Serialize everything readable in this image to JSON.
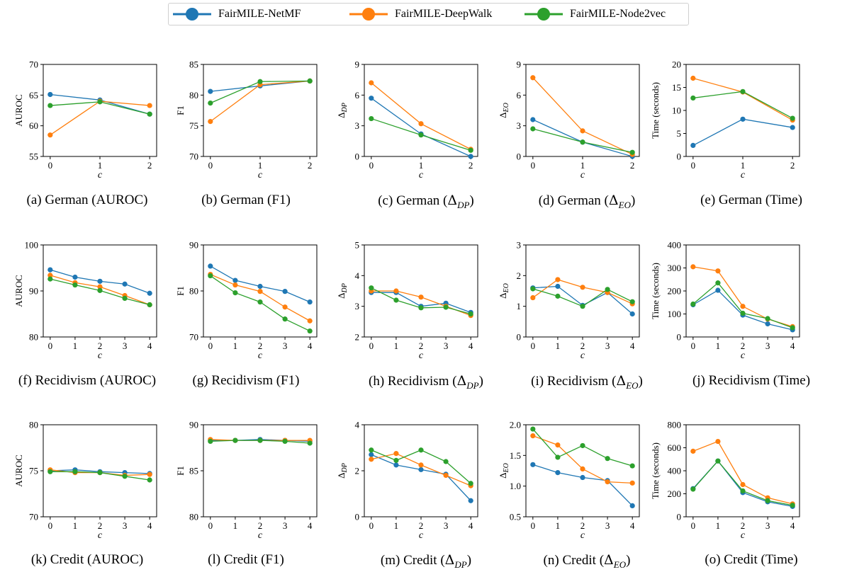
{
  "legend": [
    {
      "name": "FairMILE-NetMF",
      "color": "#1f77b4"
    },
    {
      "name": "FairMILE-DeepWalk",
      "color": "#ff7f0e"
    },
    {
      "name": "FairMILE-Node2vec",
      "color": "#2ca02c"
    }
  ],
  "captions": [
    {
      "prefix": "(a) German (AUROC)"
    },
    {
      "prefix": "(b) German (F1)"
    },
    {
      "prefix": "(c) German (",
      "sym": "Δ",
      "sub": "DP",
      "suffix": ")"
    },
    {
      "prefix": "(d) German (",
      "sym": "Δ",
      "sub": "EO",
      "suffix": ")"
    },
    {
      "prefix": "(e) German (Time)"
    },
    {
      "prefix": "(f) Recidivism (AUROC)"
    },
    {
      "prefix": "(g) Recidivism (F1)"
    },
    {
      "prefix": "(h) Recidivism (",
      "sym": "Δ",
      "sub": "DP",
      "suffix": ")"
    },
    {
      "prefix": "(i) Recidivism (",
      "sym": "Δ",
      "sub": "EO",
      "suffix": ")"
    },
    {
      "prefix": "(j) Recidivism (Time)"
    },
    {
      "prefix": "(k) Credit (AUROC)"
    },
    {
      "prefix": "(l) Credit (F1)"
    },
    {
      "prefix": "(m) Credit (",
      "sym": "Δ",
      "sub": "DP",
      "suffix": ")"
    },
    {
      "prefix": "(n) Credit (",
      "sym": "Δ",
      "sub": "EO",
      "suffix": ")"
    },
    {
      "prefix": "(o) Credit (Time)"
    }
  ],
  "chart_data": [
    {
      "type": "line",
      "xlabel": "c",
      "ylabel": "AUROC",
      "x": [
        0,
        1,
        2
      ],
      "ylim": [
        55,
        70
      ],
      "yticks": [
        "55",
        "60",
        "65",
        "70"
      ],
      "series": [
        {
          "name": "FairMILE-NetMF",
          "values": [
            65.1,
            64.2,
            61.9
          ]
        },
        {
          "name": "FairMILE-DeepWalk",
          "values": [
            58.5,
            64.0,
            63.3
          ]
        },
        {
          "name": "FairMILE-Node2vec",
          "values": [
            63.3,
            63.9,
            61.9
          ]
        }
      ]
    },
    {
      "type": "line",
      "xlabel": "c",
      "ylabel": "F1",
      "x": [
        0,
        1,
        2
      ],
      "ylim": [
        70,
        85
      ],
      "yticks": [
        "70",
        "75",
        "80",
        "85"
      ],
      "series": [
        {
          "name": "FairMILE-NetMF",
          "values": [
            80.6,
            81.5,
            82.3
          ]
        },
        {
          "name": "FairMILE-DeepWalk",
          "values": [
            75.7,
            81.7,
            82.3
          ]
        },
        {
          "name": "FairMILE-Node2vec",
          "values": [
            78.7,
            82.2,
            82.3
          ]
        }
      ]
    },
    {
      "type": "line",
      "xlabel": "c",
      "ylabel": "Δ_DP",
      "x": [
        0,
        1,
        2
      ],
      "ylim": [
        0,
        9
      ],
      "yticks": [
        "0",
        "3",
        "6",
        "9"
      ],
      "series": [
        {
          "name": "FairMILE-NetMF",
          "values": [
            5.7,
            2.2,
            0.0
          ]
        },
        {
          "name": "FairMILE-DeepWalk",
          "values": [
            7.2,
            3.2,
            0.7
          ]
        },
        {
          "name": "FairMILE-Node2vec",
          "values": [
            3.7,
            2.1,
            0.6
          ]
        }
      ]
    },
    {
      "type": "line",
      "xlabel": "c",
      "ylabel": "Δ_EO",
      "x": [
        0,
        1,
        2
      ],
      "ylim": [
        0,
        9
      ],
      "yticks": [
        "0",
        "3",
        "6",
        "9"
      ],
      "series": [
        {
          "name": "FairMILE-NetMF",
          "values": [
            3.6,
            1.4,
            0.0
          ]
        },
        {
          "name": "FairMILE-DeepWalk",
          "values": [
            7.7,
            2.5,
            0.2
          ]
        },
        {
          "name": "FairMILE-Node2vec",
          "values": [
            2.7,
            1.4,
            0.4
          ]
        }
      ]
    },
    {
      "type": "line",
      "xlabel": "c",
      "ylabel": "Time (seconds)",
      "x": [
        0,
        1,
        2
      ],
      "ylim": [
        0,
        20
      ],
      "yticks": [
        "0",
        "5",
        "10",
        "15",
        "20"
      ],
      "series": [
        {
          "name": "FairMILE-NetMF",
          "values": [
            2.4,
            8.1,
            6.3
          ]
        },
        {
          "name": "FairMILE-DeepWalk",
          "values": [
            17.0,
            14.0,
            7.9
          ]
        },
        {
          "name": "FairMILE-Node2vec",
          "values": [
            12.7,
            14.1,
            8.3
          ]
        }
      ]
    },
    {
      "type": "line",
      "xlabel": "c",
      "ylabel": "AUROC",
      "x": [
        0,
        1,
        2,
        3,
        4
      ],
      "ylim": [
        80,
        100
      ],
      "yticks": [
        "80",
        "90",
        "100"
      ],
      "series": [
        {
          "name": "FairMILE-NetMF",
          "values": [
            94.6,
            93.0,
            92.1,
            91.5,
            89.5
          ]
        },
        {
          "name": "FairMILE-DeepWalk",
          "values": [
            93.4,
            91.8,
            90.9,
            89.0,
            87.0
          ]
        },
        {
          "name": "FairMILE-Node2vec",
          "values": [
            92.6,
            91.3,
            90.1,
            88.4,
            87.0
          ]
        }
      ]
    },
    {
      "type": "line",
      "xlabel": "c",
      "ylabel": "F1",
      "x": [
        0,
        1,
        2,
        3,
        4
      ],
      "ylim": [
        70,
        90
      ],
      "yticks": [
        "70",
        "80",
        "90"
      ],
      "series": [
        {
          "name": "FairMILE-NetMF",
          "values": [
            85.4,
            82.3,
            81.0,
            79.9,
            77.6
          ]
        },
        {
          "name": "FairMILE-DeepWalk",
          "values": [
            83.6,
            81.3,
            79.9,
            76.5,
            73.5
          ]
        },
        {
          "name": "FairMILE-Node2vec",
          "values": [
            83.3,
            79.6,
            77.6,
            73.9,
            71.3
          ]
        }
      ]
    },
    {
      "type": "line",
      "xlabel": "c",
      "ylabel": "Δ_DP",
      "x": [
        0,
        1,
        2,
        3,
        4
      ],
      "ylim": [
        2,
        5
      ],
      "yticks": [
        "2",
        "3",
        "4",
        "5"
      ],
      "series": [
        {
          "name": "FairMILE-NetMF",
          "values": [
            3.45,
            3.45,
            3.0,
            3.1,
            2.8
          ]
        },
        {
          "name": "FairMILE-DeepWalk",
          "values": [
            3.5,
            3.5,
            3.3,
            3.0,
            2.7
          ]
        },
        {
          "name": "FairMILE-Node2vec",
          "values": [
            3.6,
            3.2,
            2.95,
            2.97,
            2.75
          ]
        }
      ]
    },
    {
      "type": "line",
      "xlabel": "c",
      "ylabel": "Δ_EO",
      "x": [
        0,
        1,
        2,
        3,
        4
      ],
      "ylim": [
        0,
        3
      ],
      "yticks": [
        "0",
        "1",
        "2",
        "3"
      ],
      "series": [
        {
          "name": "FairMILE-NetMF",
          "values": [
            1.6,
            1.65,
            1.03,
            1.45,
            0.75
          ]
        },
        {
          "name": "FairMILE-DeepWalk",
          "values": [
            1.28,
            1.87,
            1.62,
            1.45,
            1.08
          ]
        },
        {
          "name": "FairMILE-Node2vec",
          "values": [
            1.57,
            1.33,
            1.0,
            1.55,
            1.15
          ]
        }
      ]
    },
    {
      "type": "line",
      "xlabel": "c",
      "ylabel": "Time (seconds)",
      "x": [
        0,
        1,
        2,
        3,
        4
      ],
      "ylim": [
        0,
        400
      ],
      "yticks": [
        "0",
        "100",
        "200",
        "300",
        "400"
      ],
      "series": [
        {
          "name": "FairMILE-NetMF",
          "values": [
            140,
            203,
            95,
            57,
            31
          ]
        },
        {
          "name": "FairMILE-DeepWalk",
          "values": [
            305,
            287,
            133,
            78,
            45
          ]
        },
        {
          "name": "FairMILE-Node2vec",
          "values": [
            143,
            235,
            103,
            80,
            40
          ]
        }
      ]
    },
    {
      "type": "line",
      "xlabel": "c",
      "ylabel": "AUROC",
      "x": [
        0,
        1,
        2,
        3,
        4
      ],
      "ylim": [
        70,
        80
      ],
      "yticks": [
        "70",
        "75",
        "80"
      ],
      "series": [
        {
          "name": "FairMILE-NetMF",
          "values": [
            75.0,
            75.1,
            74.9,
            74.8,
            74.7
          ]
        },
        {
          "name": "FairMILE-DeepWalk",
          "values": [
            75.1,
            74.8,
            74.8,
            74.5,
            74.6
          ]
        },
        {
          "name": "FairMILE-Node2vec",
          "values": [
            74.9,
            74.9,
            74.8,
            74.4,
            74.0
          ]
        }
      ]
    },
    {
      "type": "line",
      "xlabel": "c",
      "ylabel": "F1",
      "x": [
        0,
        1,
        2,
        3,
        4
      ],
      "ylim": [
        80,
        90
      ],
      "yticks": [
        "80",
        "85",
        "90"
      ],
      "series": [
        {
          "name": "FairMILE-NetMF",
          "values": [
            88.3,
            88.3,
            88.4,
            88.3,
            88.2
          ]
        },
        {
          "name": "FairMILE-DeepWalk",
          "values": [
            88.4,
            88.3,
            88.3,
            88.3,
            88.3
          ]
        },
        {
          "name": "FairMILE-Node2vec",
          "values": [
            88.2,
            88.3,
            88.3,
            88.2,
            88.0
          ]
        }
      ]
    },
    {
      "type": "line",
      "xlabel": "c",
      "ylabel": "Δ_DP",
      "x": [
        0,
        1,
        2,
        3,
        4
      ],
      "ylim": [
        0,
        4
      ],
      "yticks": [
        "0",
        "2",
        "4"
      ],
      "series": [
        {
          "name": "FairMILE-NetMF",
          "values": [
            2.7,
            2.25,
            2.05,
            1.85,
            0.7
          ]
        },
        {
          "name": "FairMILE-DeepWalk",
          "values": [
            2.5,
            2.75,
            2.25,
            1.8,
            1.35
          ]
        },
        {
          "name": "FairMILE-Node2vec",
          "values": [
            2.9,
            2.45,
            2.9,
            2.4,
            1.45
          ]
        }
      ]
    },
    {
      "type": "line",
      "xlabel": "c",
      "ylabel": "Δ_EO",
      "x": [
        0,
        1,
        2,
        3,
        4
      ],
      "ylim": [
        0.5,
        2.0
      ],
      "yticks": [
        "0.5",
        "1.0",
        "1.5",
        "2.0"
      ],
      "series": [
        {
          "name": "FairMILE-NetMF",
          "values": [
            1.35,
            1.22,
            1.14,
            1.09,
            0.68
          ]
        },
        {
          "name": "FairMILE-DeepWalk",
          "values": [
            1.82,
            1.67,
            1.28,
            1.07,
            1.05
          ]
        },
        {
          "name": "FairMILE-Node2vec",
          "values": [
            1.93,
            1.47,
            1.66,
            1.45,
            1.33
          ]
        }
      ]
    },
    {
      "type": "line",
      "xlabel": "c",
      "ylabel": "Time (seconds)",
      "x": [
        0,
        1,
        2,
        3,
        4
      ],
      "ylim": [
        0,
        800
      ],
      "yticks": [
        "0",
        "200",
        "400",
        "600",
        "800"
      ],
      "series": [
        {
          "name": "FairMILE-NetMF",
          "values": [
            245,
            485,
            210,
            130,
            90
          ]
        },
        {
          "name": "FairMILE-DeepWalk",
          "values": [
            570,
            655,
            280,
            165,
            112
          ]
        },
        {
          "name": "FairMILE-Node2vec",
          "values": [
            240,
            485,
            225,
            140,
            100
          ]
        }
      ]
    }
  ]
}
